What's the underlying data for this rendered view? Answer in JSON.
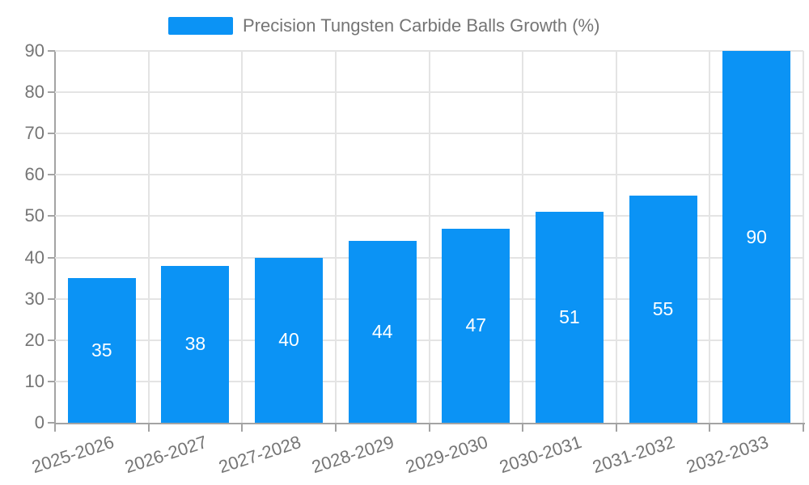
{
  "legend": {
    "label": "Precision Tungsten Carbide Balls Growth (%)"
  },
  "chart_data": {
    "type": "bar",
    "title": "Precision Tungsten Carbide Balls Growth (%)",
    "categories": [
      "2025-2026",
      "2026-2027",
      "2027-2028",
      "2028-2029",
      "2029-2030",
      "2030-2031",
      "2031-2032",
      "2032-2033"
    ],
    "values": [
      35,
      38,
      40,
      44,
      47,
      51,
      55,
      90
    ],
    "xlabel": "",
    "ylabel": "",
    "ylim": [
      0,
      90
    ],
    "ytick_step": 10,
    "yticks": [
      0,
      10,
      20,
      30,
      40,
      50,
      60,
      70,
      80,
      90
    ],
    "grid": true,
    "legend_position": "top-center",
    "value_label_position": "inside-middle",
    "colors": {
      "bar": "#0B93F5",
      "bar_label": "#FFFFFF",
      "grid_line": "#E4E4E4",
      "axis_line": "#A3A3A3",
      "tick_label": "#757575",
      "legend_text": "#757575",
      "background": "#FFFFFF"
    }
  }
}
